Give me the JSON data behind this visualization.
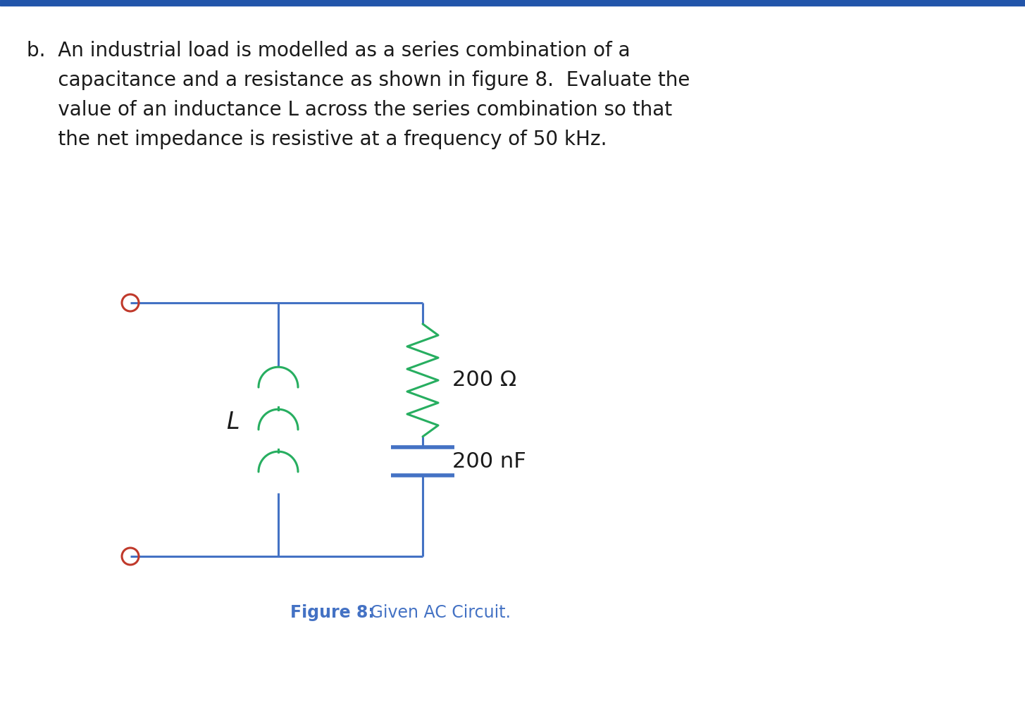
{
  "bg_color": "#ffffff",
  "text_color": "#1a1a1a",
  "wire_color": "#4472c4",
  "terminal_color": "#c0392b",
  "inductor_color": "#27ae60",
  "resistor_color": "#27ae60",
  "capacitor_color": "#4472c4",
  "fig_caption_bold": "Figure 8:",
  "fig_caption_normal": " Given AC Circuit.",
  "caption_color": "#4472c4",
  "label_L": "$L$",
  "label_R": "200 Ω",
  "label_C": "200 nF",
  "title_line1": "b.  An industrial load is modelled as a series combination of a",
  "title_line2": "     capacitance and a resistance as shown in figure 8.  Evaluate the",
  "title_line3": "     value of an inductance L across the series combination so that",
  "title_line4": "     the net impedance is resistive at a frequency of 50 kHz.",
  "figsize": [
    14.55,
    10.21
  ],
  "dpi": 100
}
